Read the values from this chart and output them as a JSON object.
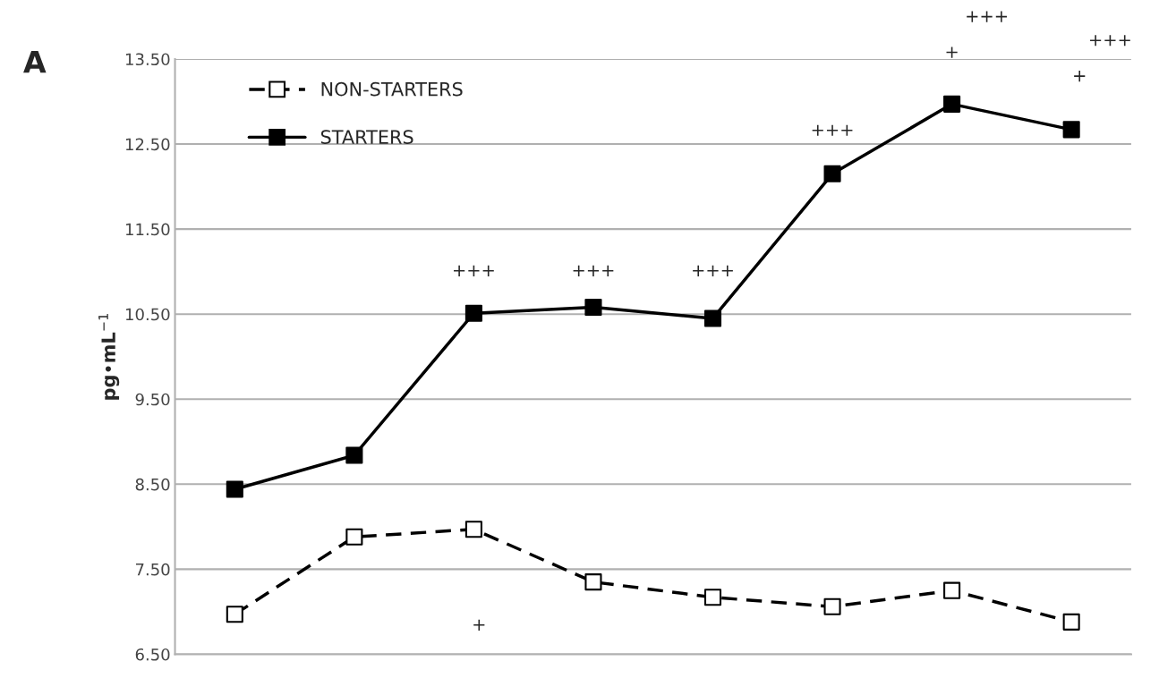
{
  "chart_data": {
    "type": "line",
    "ylabel": "pg•mL$^{−1}$",
    "categories": [
      null,
      null,
      null,
      null,
      null,
      null,
      null,
      null
    ],
    "series": [
      {
        "name": "NON-STARTERS",
        "color": "#000000",
        "line_style": "dashed",
        "marker": "square",
        "values": [
          6.97,
          7.88,
          7.97,
          7.35,
          7.17,
          7.06,
          7.25,
          6.88
        ]
      },
      {
        "name": "STARTERS",
        "color": "#000000",
        "line_style": "solid",
        "marker": "square",
        "values": [
          8.44,
          8.84,
          10.51,
          10.58,
          10.45,
          12.15,
          12.97,
          12.67
        ]
      }
    ],
    "ylim": [
      6.5,
      13.5
    ],
    "yticks": [
      {
        "value": 6.5,
        "label": "6.50"
      },
      {
        "value": 7.5,
        "label": "7.50"
      },
      {
        "value": 8.5,
        "label": "8.50"
      },
      {
        "value": 9.5,
        "label": "9.50"
      },
      {
        "value": 10.5,
        "label": "10.50"
      },
      {
        "value": 11.5,
        "label": "11.50"
      },
      {
        "value": 12.5,
        "label": "12.50"
      },
      {
        "value": 13.5,
        "label": "13.50"
      }
    ],
    "tick_labels": "y",
    "grid": "y",
    "legend": "top left",
    "annotations": [
      "A",
      "+++",
      "+++",
      "+++",
      "+++",
      "+",
      "+++",
      "+",
      "+++",
      "+"
    ]
  }
}
